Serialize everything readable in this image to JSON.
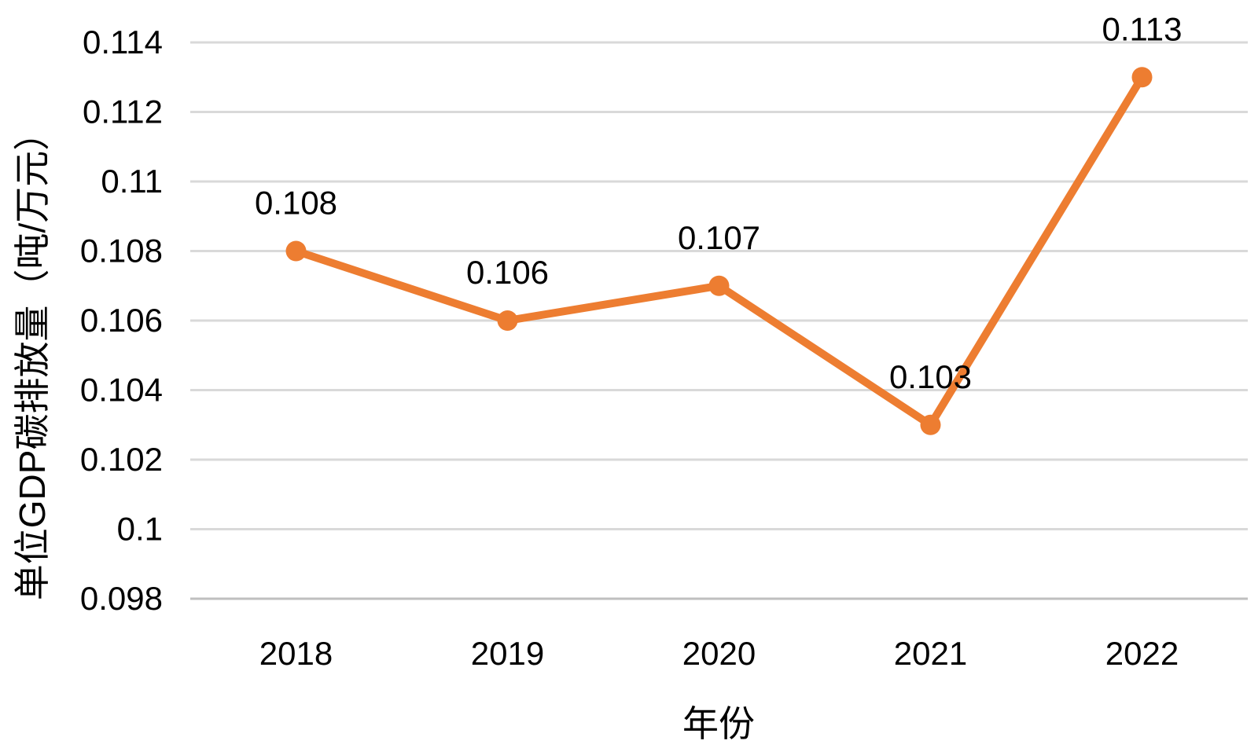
{
  "chart_data": {
    "type": "line",
    "categories": [
      "2018",
      "2019",
      "2020",
      "2021",
      "2022"
    ],
    "values": [
      0.108,
      0.106,
      0.107,
      0.103,
      0.113
    ],
    "data_labels": [
      "0.108",
      "0.106",
      "0.107",
      "0.103",
      "0.113"
    ],
    "title": "",
    "xlabel": "年份",
    "ylabel": "单位GDP碳排放量（吨/万元）",
    "ylim": [
      0.098,
      0.114
    ],
    "y_tick_step": 0.002,
    "y_tick_labels": [
      "0.098",
      "0.1",
      "0.102",
      "0.104",
      "0.106",
      "0.108",
      "0.11",
      "0.112",
      "0.114"
    ],
    "grid": true,
    "legend_position": "none",
    "colors": {
      "series_line": "#ED7D31",
      "marker_fill": "#ED7D31",
      "gridline": "#D9D9D9",
      "axis_line": "#BFBFBF",
      "text": "#000000",
      "background": "#FFFFFF"
    }
  }
}
